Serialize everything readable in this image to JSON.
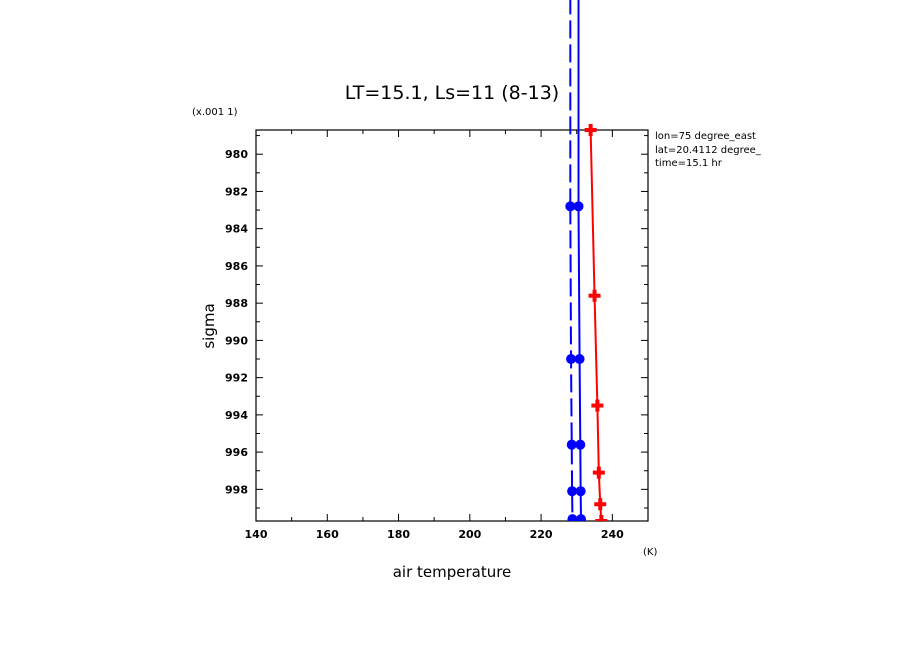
{
  "chart_data": {
    "type": "line",
    "title": "LT=15.1, Ls=11 (8-13)",
    "xlabel": "air temperature",
    "xunit": "(K)",
    "ylabel": "sigma",
    "yscale_note": "(x.001 1)",
    "xlim": [
      140,
      250
    ],
    "ylim": [
      978.7,
      999.7
    ],
    "y_inverted": true,
    "xticks": [
      140,
      160,
      180,
      200,
      220,
      240
    ],
    "yticks": [
      980,
      982,
      984,
      986,
      988,
      990,
      992,
      994,
      996,
      998
    ],
    "info_lines": [
      "lon=75 degree_east",
      "lat=20.4112 degree_",
      "time=15.1 hr"
    ],
    "series": [
      {
        "color": "#0000ff",
        "style": "dashed",
        "marker": "dot",
        "y": [
          982.8,
          991.0,
          995.6,
          998.1,
          999.6
        ],
        "x": [
          228.2,
          228.4,
          228.6,
          228.7,
          228.8
        ]
      },
      {
        "color": "#0000ff",
        "style": "solid",
        "marker": "dot",
        "y": [
          982.8,
          991.0,
          995.6,
          998.1,
          999.6
        ],
        "x": [
          230.5,
          230.8,
          231.0,
          231.1,
          231.2
        ]
      },
      {
        "color": "#ff0000",
        "style": "solid",
        "marker": "plus",
        "y": [
          978.7,
          987.6,
          993.5,
          997.1,
          998.8,
          999.7
        ],
        "x": [
          233.9,
          235.0,
          235.8,
          236.2,
          236.6,
          236.9
        ]
      }
    ]
  }
}
